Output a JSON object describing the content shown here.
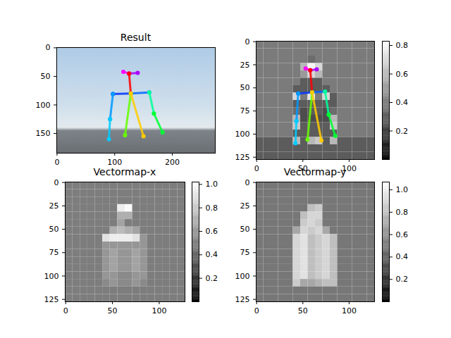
{
  "chart_data": [
    {
      "type": "pose",
      "title": "Result",
      "xlim": [
        -0.5,
        274.5
      ],
      "ylim": [
        184.5,
        -0.5
      ],
      "xticks": [
        0,
        100,
        200
      ],
      "yticks": [
        0,
        50,
        100,
        150
      ],
      "limbs": [
        {
          "color": "#ff00ff",
          "x": [
            115,
            125
          ],
          "y": [
            42,
            45
          ]
        },
        {
          "color": "#aa00ff",
          "x": [
            125,
            140
          ],
          "y": [
            45,
            44
          ]
        },
        {
          "color": "#ff0000",
          "x": [
            125,
            128
          ],
          "y": [
            45,
            80
          ]
        },
        {
          "color": "#0033ff",
          "x": [
            128,
            97
          ],
          "y": [
            80,
            81
          ]
        },
        {
          "color": "#0066ff",
          "x": [
            128,
            160
          ],
          "y": [
            80,
            78
          ]
        },
        {
          "color": "#0099ff",
          "x": [
            97,
            92
          ],
          "y": [
            81,
            125
          ]
        },
        {
          "color": "#00ccff",
          "x": [
            92,
            90
          ],
          "y": [
            125,
            160
          ]
        },
        {
          "color": "#00ff99",
          "x": [
            160,
            168
          ],
          "y": [
            78,
            115
          ]
        },
        {
          "color": "#00ff33",
          "x": [
            168,
            183
          ],
          "y": [
            115,
            148
          ]
        },
        {
          "color": "#66ff00",
          "x": [
            128,
            118
          ],
          "y": [
            80,
            153
          ]
        },
        {
          "color": "#ffcc00",
          "x": [
            128,
            150
          ],
          "y": [
            80,
            155
          ]
        }
      ]
    },
    {
      "type": "heatmap",
      "xlim": [
        -0.5,
        127.5
      ],
      "ylim": [
        127.5,
        -0.5
      ],
      "xticks": [
        0,
        50,
        100
      ],
      "yticks": [
        0,
        25,
        50,
        75,
        100,
        125
      ],
      "colorbar_range": [
        0,
        0.83
      ],
      "colorbar_ticks": [
        0.2,
        0.4,
        0.6,
        0.8
      ],
      "cells": [
        [
          0.4,
          0.4,
          0.4,
          0.4,
          0.4,
          0.4,
          0.4,
          0.4,
          0.4,
          0.4,
          0.4,
          0.4,
          0.4,
          0.4,
          0.4,
          0.4
        ],
        [
          0.4,
          0.4,
          0.4,
          0.4,
          0.4,
          0.4,
          0.4,
          0.4,
          0.4,
          0.4,
          0.4,
          0.4,
          0.4,
          0.4,
          0.4,
          0.4
        ],
        [
          0.4,
          0.4,
          0.4,
          0.4,
          0.4,
          0.4,
          0.4,
          0.35,
          0.4,
          0.4,
          0.4,
          0.4,
          0.4,
          0.4,
          0.4,
          0.4
        ],
        [
          0.4,
          0.4,
          0.4,
          0.4,
          0.4,
          0.4,
          0.6,
          0.8,
          0.7,
          0.4,
          0.4,
          0.4,
          0.4,
          0.4,
          0.4,
          0.4
        ],
        [
          0.4,
          0.4,
          0.4,
          0.4,
          0.4,
          0.4,
          0.5,
          0.7,
          0.6,
          0.4,
          0.4,
          0.4,
          0.4,
          0.4,
          0.4,
          0.4
        ],
        [
          0.4,
          0.4,
          0.4,
          0.4,
          0.4,
          0.4,
          0.3,
          0.3,
          0.3,
          0.4,
          0.4,
          0.4,
          0.4,
          0.4,
          0.4,
          0.4
        ],
        [
          0.4,
          0.4,
          0.4,
          0.4,
          0.4,
          0.3,
          0.3,
          0.3,
          0.3,
          0.3,
          0.4,
          0.4,
          0.4,
          0.4,
          0.4,
          0.4
        ],
        [
          0.4,
          0.4,
          0.4,
          0.4,
          0.4,
          0.7,
          0.4,
          0.75,
          0.4,
          0.7,
          0.3,
          0.4,
          0.4,
          0.4,
          0.4,
          0.4
        ],
        [
          0.4,
          0.4,
          0.4,
          0.4,
          0.4,
          0.3,
          0.3,
          0.3,
          0.3,
          0.3,
          0.3,
          0.4,
          0.4,
          0.4,
          0.4,
          0.4
        ],
        [
          0.4,
          0.4,
          0.4,
          0.4,
          0.4,
          0.35,
          0.25,
          0.3,
          0.3,
          0.25,
          0.35,
          0.4,
          0.4,
          0.4,
          0.4,
          0.4
        ],
        [
          0.4,
          0.4,
          0.4,
          0.4,
          0.4,
          0.6,
          0.25,
          0.25,
          0.25,
          0.25,
          0.6,
          0.4,
          0.4,
          0.4,
          0.4,
          0.4
        ],
        [
          0.4,
          0.4,
          0.4,
          0.4,
          0.4,
          0.65,
          0.3,
          0.3,
          0.3,
          0.3,
          0.65,
          0.4,
          0.4,
          0.4,
          0.4,
          0.4
        ],
        [
          0.4,
          0.4,
          0.4,
          0.4,
          0.4,
          0.3,
          0.3,
          0.3,
          0.3,
          0.3,
          0.3,
          0.4,
          0.4,
          0.4,
          0.4,
          0.4
        ],
        [
          0.3,
          0.3,
          0.3,
          0.3,
          0.3,
          0.6,
          0.3,
          0.6,
          0.65,
          0.3,
          0.6,
          0.3,
          0.3,
          0.3,
          0.3,
          0.3
        ],
        [
          0.3,
          0.3,
          0.3,
          0.3,
          0.3,
          0.3,
          0.3,
          0.3,
          0.3,
          0.3,
          0.3,
          0.3,
          0.3,
          0.3,
          0.3,
          0.3
        ],
        [
          0.3,
          0.3,
          0.3,
          0.3,
          0.3,
          0.3,
          0.3,
          0.3,
          0.3,
          0.3,
          0.3,
          0.3,
          0.3,
          0.3,
          0.3,
          0.3
        ]
      ],
      "limbs": [
        {
          "color": "#ff00ff",
          "x": [
            53,
            58
          ],
          "y": [
            29,
            31
          ]
        },
        {
          "color": "#aa00ff",
          "x": [
            58,
            65
          ],
          "y": [
            31,
            30
          ]
        },
        {
          "color": "#ff0000",
          "x": [
            58,
            60
          ],
          "y": [
            31,
            55
          ]
        },
        {
          "color": "#0033ff",
          "x": [
            60,
            45
          ],
          "y": [
            55,
            56
          ]
        },
        {
          "color": "#0066ff",
          "x": [
            60,
            74
          ],
          "y": [
            55,
            54
          ]
        },
        {
          "color": "#0099ff",
          "x": [
            45,
            43
          ],
          "y": [
            56,
            86
          ]
        },
        {
          "color": "#00ccff",
          "x": [
            43,
            42
          ],
          "y": [
            86,
            110
          ]
        },
        {
          "color": "#00ff99",
          "x": [
            74,
            78
          ],
          "y": [
            54,
            79
          ]
        },
        {
          "color": "#00ff33",
          "x": [
            78,
            85
          ],
          "y": [
            79,
            102
          ]
        },
        {
          "color": "#66ff00",
          "x": [
            60,
            55
          ],
          "y": [
            55,
            106
          ]
        },
        {
          "color": "#ffcc00",
          "x": [
            60,
            70
          ],
          "y": [
            55,
            107
          ]
        }
      ]
    },
    {
      "type": "heatmap",
      "title": "Vectormap-x",
      "xlim": [
        -0.5,
        127.5
      ],
      "ylim": [
        127.5,
        -0.5
      ],
      "xticks": [
        0,
        50,
        100
      ],
      "yticks": [
        0,
        25,
        50,
        75,
        100,
        125
      ],
      "colorbar_range": [
        0,
        1.02
      ],
      "colorbar_ticks": [
        0.2,
        0.4,
        0.6,
        0.8,
        {
          "value": 1,
          "label": "1.0"
        }
      ],
      "cells": [
        [
          0.5,
          0.5,
          0.5,
          0.5,
          0.5,
          0.5,
          0.5,
          0.5,
          0.5,
          0.5,
          0.5,
          0.5,
          0.5,
          0.5,
          0.5,
          0.5
        ],
        [
          0.5,
          0.5,
          0.5,
          0.5,
          0.5,
          0.5,
          0.5,
          0.5,
          0.5,
          0.5,
          0.5,
          0.5,
          0.5,
          0.5,
          0.5,
          0.5
        ],
        [
          0.5,
          0.5,
          0.5,
          0.5,
          0.5,
          0.5,
          0.5,
          0.5,
          0.5,
          0.5,
          0.5,
          0.5,
          0.5,
          0.5,
          0.5,
          0.5
        ],
        [
          0.5,
          0.5,
          0.5,
          0.5,
          0.5,
          0.5,
          0.5,
          0.95,
          1.0,
          0.5,
          0.5,
          0.5,
          0.5,
          0.5,
          0.5,
          0.5
        ],
        [
          0.5,
          0.5,
          0.5,
          0.5,
          0.5,
          0.5,
          0.5,
          0.7,
          0.7,
          0.5,
          0.5,
          0.5,
          0.5,
          0.5,
          0.5,
          0.5
        ],
        [
          0.5,
          0.5,
          0.5,
          0.5,
          0.5,
          0.5,
          0.5,
          0.65,
          0.5,
          0.5,
          0.5,
          0.5,
          0.5,
          0.5,
          0.5,
          0.5
        ],
        [
          0.5,
          0.5,
          0.5,
          0.5,
          0.5,
          0.5,
          0.7,
          0.75,
          0.7,
          0.65,
          0.5,
          0.5,
          0.5,
          0.5,
          0.5,
          0.5
        ],
        [
          0.5,
          0.5,
          0.5,
          0.5,
          0.5,
          0.9,
          0.95,
          0.95,
          0.95,
          0.9,
          0.6,
          0.5,
          0.5,
          0.5,
          0.5,
          0.5
        ],
        [
          0.5,
          0.5,
          0.5,
          0.5,
          0.5,
          0.6,
          0.6,
          0.6,
          0.6,
          0.6,
          0.6,
          0.5,
          0.5,
          0.5,
          0.5,
          0.5
        ],
        [
          0.5,
          0.5,
          0.5,
          0.5,
          0.5,
          0.6,
          0.65,
          0.6,
          0.6,
          0.65,
          0.6,
          0.5,
          0.5,
          0.5,
          0.5,
          0.5
        ],
        [
          0.5,
          0.5,
          0.5,
          0.5,
          0.5,
          0.6,
          0.65,
          0.6,
          0.6,
          0.65,
          0.6,
          0.5,
          0.5,
          0.5,
          0.5,
          0.5
        ],
        [
          0.5,
          0.5,
          0.5,
          0.5,
          0.5,
          0.6,
          0.65,
          0.6,
          0.6,
          0.65,
          0.6,
          0.5,
          0.5,
          0.5,
          0.5,
          0.5
        ],
        [
          0.5,
          0.5,
          0.5,
          0.5,
          0.5,
          0.6,
          0.6,
          0.55,
          0.55,
          0.6,
          0.6,
          0.5,
          0.5,
          0.5,
          0.5,
          0.5
        ],
        [
          0.5,
          0.5,
          0.5,
          0.5,
          0.5,
          0.55,
          0.6,
          0.55,
          0.55,
          0.6,
          0.55,
          0.5,
          0.5,
          0.5,
          0.5,
          0.5
        ],
        [
          0.5,
          0.5,
          0.5,
          0.5,
          0.5,
          0.5,
          0.5,
          0.5,
          0.5,
          0.5,
          0.5,
          0.5,
          0.5,
          0.5,
          0.5,
          0.5
        ],
        [
          0.5,
          0.5,
          0.5,
          0.5,
          0.5,
          0.5,
          0.5,
          0.5,
          0.5,
          0.5,
          0.5,
          0.5,
          0.5,
          0.5,
          0.5,
          0.5
        ]
      ]
    },
    {
      "type": "heatmap",
      "title": "Vectormap-y",
      "xlim": [
        -0.5,
        127.5
      ],
      "ylim": [
        127.5,
        -0.5
      ],
      "xticks": [
        0,
        50,
        100
      ],
      "yticks": [
        0,
        25,
        50,
        75,
        100,
        125
      ],
      "colorbar_range": [
        0,
        1.07
      ],
      "colorbar_ticks": [
        0.2,
        0.4,
        0.6,
        0.8,
        {
          "value": 1,
          "label": "1.0"
        }
      ],
      "cells": [
        [
          0.5,
          0.5,
          0.5,
          0.5,
          0.5,
          0.5,
          0.5,
          0.5,
          0.5,
          0.5,
          0.5,
          0.5,
          0.5,
          0.5,
          0.5,
          0.5
        ],
        [
          0.5,
          0.5,
          0.5,
          0.5,
          0.5,
          0.5,
          0.5,
          0.5,
          0.5,
          0.5,
          0.5,
          0.5,
          0.5,
          0.5,
          0.5,
          0.5
        ],
        [
          0.5,
          0.5,
          0.5,
          0.5,
          0.5,
          0.5,
          0.5,
          0.5,
          0.5,
          0.5,
          0.5,
          0.5,
          0.5,
          0.5,
          0.5,
          0.5
        ],
        [
          0.5,
          0.5,
          0.5,
          0.5,
          0.5,
          0.5,
          0.5,
          0.8,
          0.85,
          0.5,
          0.5,
          0.5,
          0.5,
          0.5,
          0.5,
          0.5
        ],
        [
          0.5,
          0.5,
          0.5,
          0.5,
          0.5,
          0.5,
          0.8,
          0.9,
          0.9,
          0.5,
          0.5,
          0.5,
          0.5,
          0.5,
          0.5,
          0.5
        ],
        [
          0.5,
          0.5,
          0.5,
          0.5,
          0.5,
          0.5,
          0.85,
          0.9,
          0.85,
          0.5,
          0.5,
          0.5,
          0.5,
          0.5,
          0.5,
          0.5
        ],
        [
          0.5,
          0.5,
          0.5,
          0.5,
          0.5,
          0.7,
          0.9,
          0.85,
          0.9,
          0.7,
          0.5,
          0.5,
          0.5,
          0.5,
          0.5,
          0.5
        ],
        [
          0.5,
          0.5,
          0.5,
          0.5,
          0.5,
          0.9,
          0.95,
          0.8,
          0.85,
          0.9,
          0.8,
          0.5,
          0.5,
          0.5,
          0.5,
          0.5
        ],
        [
          0.5,
          0.5,
          0.5,
          0.5,
          0.5,
          0.9,
          0.95,
          0.8,
          0.85,
          0.9,
          0.8,
          0.5,
          0.5,
          0.5,
          0.5,
          0.5
        ],
        [
          0.5,
          0.5,
          0.5,
          0.5,
          0.5,
          0.9,
          0.95,
          0.8,
          0.85,
          0.9,
          0.8,
          0.5,
          0.5,
          0.5,
          0.5,
          0.5
        ],
        [
          0.5,
          0.5,
          0.5,
          0.5,
          0.5,
          0.9,
          0.95,
          0.8,
          0.85,
          0.9,
          0.8,
          0.5,
          0.5,
          0.5,
          0.5,
          0.5
        ],
        [
          0.5,
          0.5,
          0.5,
          0.5,
          0.5,
          0.9,
          0.95,
          0.8,
          0.85,
          0.9,
          0.8,
          0.5,
          0.5,
          0.5,
          0.5,
          0.5
        ],
        [
          0.5,
          0.5,
          0.5,
          0.5,
          0.5,
          0.9,
          0.95,
          0.8,
          0.85,
          0.9,
          0.8,
          0.5,
          0.5,
          0.5,
          0.5,
          0.5
        ],
        [
          0.5,
          0.5,
          0.5,
          0.5,
          0.5,
          0.85,
          0.7,
          0.7,
          0.75,
          0.8,
          0.8,
          0.5,
          0.5,
          0.5,
          0.5,
          0.5
        ],
        [
          0.5,
          0.5,
          0.5,
          0.5,
          0.5,
          0.5,
          0.5,
          0.5,
          0.5,
          0.5,
          0.5,
          0.5,
          0.5,
          0.5,
          0.5,
          0.5
        ],
        [
          0.5,
          0.5,
          0.5,
          0.5,
          0.5,
          0.5,
          0.5,
          0.5,
          0.5,
          0.5,
          0.5,
          0.5,
          0.5,
          0.5,
          0.5,
          0.5
        ]
      ]
    }
  ]
}
